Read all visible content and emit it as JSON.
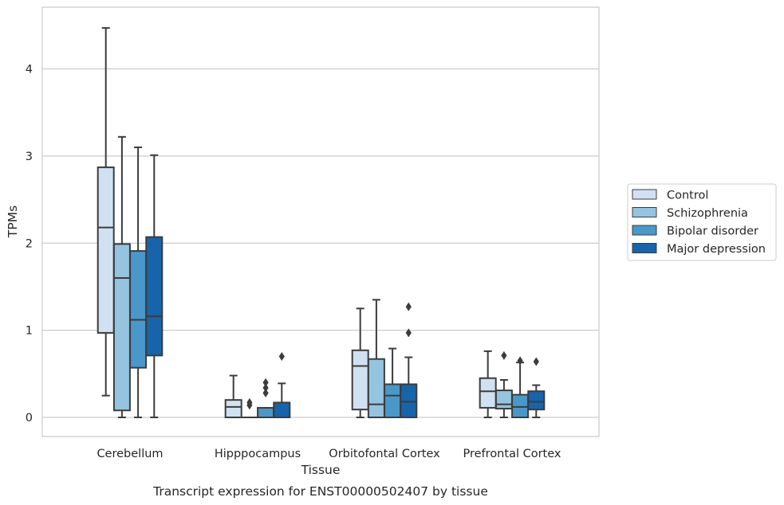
{
  "chart_data": {
    "type": "boxplot",
    "title": "Transcript expression for ENST00000502407 by tissue",
    "xlabel": "Tissue",
    "ylabel": "TPMs",
    "ylim": [
      -0.22,
      4.7
    ],
    "yticks": [
      0,
      1,
      2,
      3,
      4
    ],
    "grid": true,
    "legend_position": "right",
    "categories": [
      "Cerebellum",
      "Hipppocampus",
      "Orbitofontal Cortex",
      "Prefrontal Cortex"
    ],
    "series": [
      {
        "name": "Control",
        "color": "#d0e1f2",
        "boxes": [
          {
            "whislo": 0.25,
            "q1": 0.97,
            "med": 2.18,
            "q3": 2.87,
            "whishi": 4.47,
            "fliers": []
          },
          {
            "whislo": 0.0,
            "q1": 0.0,
            "med": 0.12,
            "q3": 0.2,
            "whishi": 0.48,
            "fliers": []
          },
          {
            "whislo": 0.0,
            "q1": 0.09,
            "med": 0.59,
            "q3": 0.77,
            "whishi": 1.25,
            "fliers": []
          },
          {
            "whislo": 0.0,
            "q1": 0.11,
            "med": 0.3,
            "q3": 0.45,
            "whishi": 0.76,
            "fliers": []
          }
        ]
      },
      {
        "name": "Schizophrenia",
        "color": "#94c4df",
        "boxes": [
          {
            "whislo": 0.0,
            "q1": 0.08,
            "med": 1.6,
            "q3": 1.99,
            "whishi": 3.22,
            "fliers": []
          },
          {
            "whislo": 0.0,
            "q1": 0.0,
            "med": 0.0,
            "q3": 0.0,
            "whishi": 0.0,
            "fliers": [
              0.14,
              0.17
            ]
          },
          {
            "whislo": 0.0,
            "q1": 0.0,
            "med": 0.15,
            "q3": 0.67,
            "whishi": 1.35,
            "fliers": []
          },
          {
            "whislo": 0.0,
            "q1": 0.1,
            "med": 0.15,
            "q3": 0.31,
            "whishi": 0.43,
            "fliers": [
              0.71
            ]
          }
        ]
      },
      {
        "name": "Bipolar disorder",
        "color": "#4a98c9",
        "boxes": [
          {
            "whislo": 0.0,
            "q1": 0.57,
            "med": 1.12,
            "q3": 1.91,
            "whishi": 3.1,
            "fliers": []
          },
          {
            "whislo": 0.0,
            "q1": 0.0,
            "med": 0.0,
            "q3": 0.11,
            "whishi": 0.11,
            "fliers": [
              0.28,
              0.34,
              0.4
            ]
          },
          {
            "whislo": 0.0,
            "q1": 0.0,
            "med": 0.25,
            "q3": 0.38,
            "whishi": 0.79,
            "fliers": []
          },
          {
            "whislo": 0.0,
            "q1": 0.0,
            "med": 0.12,
            "q3": 0.26,
            "whishi": 0.63,
            "fliers": [
              0.65
            ]
          }
        ]
      },
      {
        "name": "Major depression",
        "color": "#1764ab",
        "boxes": [
          {
            "whislo": 0.0,
            "q1": 0.71,
            "med": 1.16,
            "q3": 2.07,
            "whishi": 3.01,
            "fliers": []
          },
          {
            "whislo": 0.0,
            "q1": 0.0,
            "med": 0.0,
            "q3": 0.17,
            "whishi": 0.39,
            "fliers": [
              0.7
            ]
          },
          {
            "whislo": 0.0,
            "q1": 0.0,
            "med": 0.18,
            "q3": 0.38,
            "whishi": 0.69,
            "fliers": [
              0.97,
              1.27
            ]
          },
          {
            "whislo": 0.0,
            "q1": 0.09,
            "med": 0.18,
            "q3": 0.3,
            "whishi": 0.37,
            "fliers": [
              0.64
            ]
          }
        ]
      }
    ]
  }
}
